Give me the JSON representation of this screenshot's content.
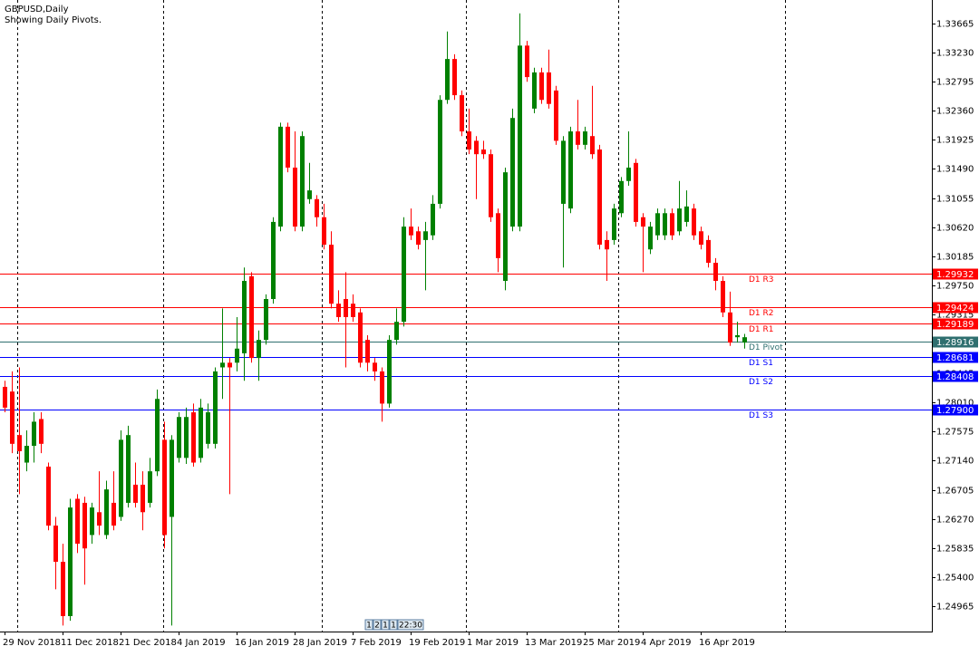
{
  "chart_data": {
    "type": "candlestick",
    "title": "GBPUSD,Daily",
    "subtitle": "Showing Daily Pivots.",
    "up_color": "#008000",
    "down_color": "#ff0000",
    "categories": [
      "29 Nov 2018",
      null,
      null,
      null,
      null,
      null,
      null,
      null,
      "11 Dec 2018",
      null,
      null,
      null,
      null,
      null,
      null,
      null,
      "21 Dec 2018",
      null,
      null,
      null,
      null,
      null,
      null,
      null,
      "4 Jan 2019",
      null,
      null,
      null,
      null,
      null,
      null,
      null,
      "16 Jan 2019",
      null,
      null,
      null,
      null,
      null,
      null,
      null,
      "28 Jan 2019",
      null,
      null,
      null,
      null,
      null,
      null,
      null,
      "7 Feb 2019",
      null,
      null,
      null,
      null,
      null,
      null,
      null,
      "19 Feb 2019",
      null,
      null,
      null,
      null,
      null,
      null,
      null,
      "1 Mar 2019",
      null,
      null,
      null,
      null,
      null,
      null,
      null,
      "13 Mar 2019",
      null,
      null,
      null,
      null,
      null,
      null,
      null,
      "25 Mar 2019",
      null,
      null,
      null,
      null,
      null,
      null,
      null,
      "4 Apr 2019",
      null,
      null,
      null,
      null,
      null,
      null,
      null,
      "16 Apr 2019",
      null,
      null,
      null,
      null,
      null,
      null
    ],
    "open": [
      1.2824,
      1.2817,
      1.2752,
      1.2711,
      1.2736,
      1.2776,
      1.2705,
      1.2617,
      1.2563,
      1.2482,
      1.2657,
      1.2651,
      1.2603,
      1.2637,
      1.2603,
      1.2651,
      1.263,
      1.2651,
      1.2678,
      1.2678,
      1.2651,
      1.2698,
      1.2745,
      1.263,
      1.2718,
      1.2718,
      1.2786,
      1.2718,
      1.2739,
      1.2739,
      1.2853,
      1.286,
      1.286,
      1.2874,
      1.2989,
      1.2867,
      1.2894,
      1.2955,
      1.3063,
      1.3212,
      1.3151,
      1.3063,
      1.3104,
      1.3104,
      1.3077,
      1.3036,
      1.2948,
      1.2955,
      1.2948,
      1.2935,
      1.2894,
      1.286,
      1.2847,
      1.2799,
      1.2894,
      1.2921,
      1.3063,
      1.3056,
      1.3043,
      1.305,
      1.3097,
      1.3252,
      1.3313,
      1.3259,
      1.3205,
      1.3191,
      1.3178,
      1.3171,
      1.3083,
      1.2982,
      1.3063,
      1.3063,
      1.3333,
      1.3239,
      1.3293,
      1.3293,
      1.3266,
      1.3097,
      1.309,
      1.3205,
      1.3185,
      1.3198,
      1.3178,
      1.3043,
      1.3043,
      1.3083,
      1.3131,
      1.3158,
      1.3077,
      1.3029,
      1.305,
      1.305,
      1.3083,
      1.3056,
      1.307,
      1.309,
      1.3056,
      1.3043,
      1.3009,
      1.2982,
      1.2935,
      1.2898,
      1.289
    ],
    "high": [
      1.2833,
      1.2847,
      1.2853,
      1.2759,
      1.2786,
      1.2786,
      1.2711,
      1.263,
      1.259,
      1.2657,
      1.2664,
      1.266,
      1.2651,
      1.2698,
      1.2684,
      1.2698,
      1.2759,
      1.2766,
      1.2711,
      1.2698,
      1.2718,
      1.282,
      1.2772,
      1.2752,
      1.2786,
      1.2793,
      1.2799,
      1.2806,
      1.2799,
      1.2853,
      1.2941,
      1.2867,
      1.2928,
      1.3002,
      1.2995,
      1.2908,
      1.2962,
      1.3077,
      1.3218,
      1.3218,
      1.3205,
      1.3205,
      1.3158,
      1.311,
      1.3097,
      1.3056,
      1.2968,
      1.2995,
      1.2962,
      1.2941,
      1.2901,
      1.2867,
      1.2853,
      1.2901,
      1.2941,
      1.3077,
      1.309,
      1.3063,
      1.307,
      1.311,
      1.3259,
      1.3354,
      1.332,
      1.3266,
      1.3239,
      1.3198,
      1.3191,
      1.3178,
      1.309,
      1.3151,
      1.3239,
      1.3381,
      1.334,
      1.33,
      1.33,
      1.3327,
      1.3273,
      1.3198,
      1.3212,
      1.3252,
      1.3212,
      1.3273,
      1.3185,
      1.3056,
      1.3097,
      1.3137,
      1.3205,
      1.3164,
      1.3083,
      1.307,
      1.309,
      1.309,
      1.309,
      1.3131,
      1.3117,
      1.3097,
      1.3063,
      1.305,
      1.3016,
      1.2989,
      1.2966,
      1.2921,
      1.2903
    ],
    "low": [
      1.2786,
      1.2725,
      1.2664,
      1.2698,
      1.2711,
      1.2725,
      1.261,
      1.2522,
      1.2468,
      1.2475,
      1.2576,
      1.2529,
      1.259,
      1.2603,
      1.2597,
      1.261,
      1.2624,
      1.2644,
      1.2644,
      1.261,
      1.2644,
      1.2691,
      1.2583,
      1.2468,
      1.2711,
      1.2709,
      1.2705,
      1.2711,
      1.2732,
      1.2732,
      1.2806,
      1.2664,
      1.2847,
      1.2833,
      1.286,
      1.2833,
      1.2887,
      1.2948,
      1.3056,
      1.3144,
      1.3056,
      1.3056,
      1.3097,
      1.3063,
      1.3029,
      1.2941,
      1.2921,
      1.2853,
      1.2921,
      1.2853,
      1.2847,
      1.2833,
      1.2772,
      1.2793,
      1.2887,
      1.2914,
      1.3043,
      1.3029,
      1.2968,
      1.3043,
      1.309,
      1.3246,
      1.3252,
      1.3198,
      1.3171,
      1.3104,
      1.3164,
      1.307,
      1.2995,
      1.2968,
      1.3056,
      1.3056,
      1.3279,
      1.3232,
      1.3246,
      1.3239,
      1.3185,
      1.3002,
      1.3083,
      1.3178,
      1.3178,
      1.3164,
      1.3029,
      1.2982,
      1.3036,
      1.3077,
      1.3124,
      1.3063,
      1.2995,
      1.3022,
      1.3043,
      1.3043,
      1.3043,
      1.305,
      1.3063,
      1.3043,
      1.3029,
      1.3002,
      1.2968,
      1.2928,
      1.2885,
      1.289,
      1.2881
    ],
    "close": [
      1.2793,
      1.2739,
      1.2728,
      1.2736,
      1.2772,
      1.2739,
      1.2617,
      1.2563,
      1.2482,
      1.2644,
      1.259,
      1.2583,
      1.2644,
      1.2617,
      1.2671,
      1.2617,
      1.2745,
      1.2752,
      1.2651,
      1.2637,
      1.2698,
      1.2806,
      1.2603,
      1.2745,
      1.2779,
      1.2779,
      1.2711,
      1.2793,
      1.2786,
      1.2847,
      1.286,
      1.2853,
      1.2881,
      1.2982,
      1.2867,
      1.2894,
      1.2955,
      1.307,
      1.3212,
      1.3151,
      1.3063,
      1.3198,
      1.3117,
      1.3077,
      1.3036,
      1.2948,
      1.2928,
      1.2928,
      1.2928,
      1.286,
      1.286,
      1.2847,
      1.2799,
      1.2894,
      1.2921,
      1.3063,
      1.305,
      1.3036,
      1.3056,
      1.3097,
      1.3252,
      1.3313,
      1.3259,
      1.3205,
      1.3178,
      1.3171,
      1.3171,
      1.3077,
      1.3016,
      1.3144,
      1.3225,
      1.3333,
      1.3286,
      1.3293,
      1.3252,
      1.3246,
      1.3191,
      1.3191,
      1.3205,
      1.3185,
      1.3205,
      1.3171,
      1.3036,
      1.3029,
      1.309,
      1.3131,
      1.3151,
      1.307,
      1.3063,
      1.3063,
      1.3083,
      1.3083,
      1.305,
      1.309,
      1.3093,
      1.305,
      1.3036,
      1.3009,
      1.2982,
      1.2935,
      1.289,
      1.2901,
      1.2898
    ],
    "ylim": [
      1.2459,
      1.3401
    ],
    "yticks": [
      {
        "value": 1.24965,
        "label": "1.24965"
      },
      {
        "value": 1.254,
        "label": "1.25400"
      },
      {
        "value": 1.25835,
        "label": "1.25835"
      },
      {
        "value": 1.2627,
        "label": "1.26270"
      },
      {
        "value": 1.26705,
        "label": "1.26705"
      },
      {
        "value": 1.2714,
        "label": "1.27140"
      },
      {
        "value": 1.27575,
        "label": "1.27575"
      },
      {
        "value": 1.2801,
        "label": "1.28010"
      },
      {
        "value": 1.28445,
        "label": "1.28445"
      },
      {
        "value": 1.2888,
        "label": "1.28880"
      },
      {
        "value": 1.29315,
        "label": "1.29315"
      },
      {
        "value": 1.2975,
        "label": "1.29750"
      },
      {
        "value": 1.30185,
        "label": "1.30185"
      },
      {
        "value": 1.3062,
        "label": "1.30620"
      },
      {
        "value": 1.31055,
        "label": "1.31055"
      },
      {
        "value": 1.3149,
        "label": "1.31490"
      },
      {
        "value": 1.31925,
        "label": "1.31925"
      },
      {
        "value": 1.3236,
        "label": "1.32360"
      },
      {
        "value": 1.32795,
        "label": "1.32795"
      },
      {
        "value": 1.3323,
        "label": "1.33230"
      },
      {
        "value": 1.33665,
        "label": "1.33665"
      }
    ],
    "pivots": [
      {
        "name": "D1 R3",
        "value": 1.29932,
        "value_label": "1.29932",
        "color": "#ff0000"
      },
      {
        "name": "D1 R2",
        "value": 1.29424,
        "value_label": "1.29424",
        "color": "#ff0000"
      },
      {
        "name": "D1 R1",
        "value": 1.29189,
        "value_label": "1.29189",
        "color": "#ff0000"
      },
      {
        "name": "D1 Pivot",
        "value": 1.28916,
        "value_label": "1.28916",
        "color": "#2f6f6f"
      },
      {
        "name": "D1 S1",
        "value": 1.28681,
        "value_label": "1.28681",
        "color": "#0000ff"
      },
      {
        "name": "D1 S2",
        "value": 1.28408,
        "value_label": "1.28408",
        "color": "#0000ff"
      },
      {
        "name": "D1 S3",
        "value": 1.279,
        "value_label": "1.27900",
        "color": "#0000ff"
      }
    ]
  },
  "status_boxes": [
    "1",
    "2",
    "1",
    "1",
    "22:30"
  ]
}
